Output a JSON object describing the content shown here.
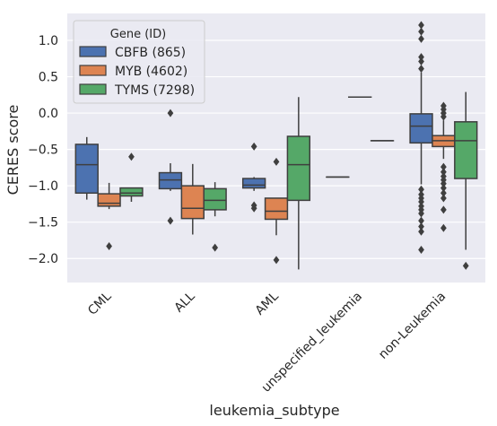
{
  "chart_data": {
    "type": "box",
    "xlabel": "leukemia_subtype",
    "ylabel": "CERES score",
    "ylim": [
      -2.33,
      1.37
    ],
    "yticks": [
      1.0,
      0.5,
      0.0,
      -0.5,
      -1.0,
      -1.5,
      -2.0
    ],
    "ytick_labels": [
      "1.0",
      "0.5",
      "0.0",
      "−0.5",
      "−1.0",
      "−1.5",
      "−2.0"
    ],
    "grid": true,
    "categories": [
      "CML",
      "ALL",
      "AML",
      "unspecified_leukemia",
      "non-Leukemia"
    ],
    "legend": {
      "title": "Gene (ID)",
      "placement": "top-left",
      "entries": [
        "CBFB (865)",
        "MYB (4602)",
        "TYMS (7298)"
      ]
    },
    "colors": {
      "background": "#eaeaf2",
      "grid": "#ffffff",
      "line": "#3f3f3f",
      "series": [
        "#4c72b0",
        "#dd8452",
        "#55a868"
      ]
    },
    "series": [
      {
        "name": "CBFB (865)",
        "boxes": [
          {
            "category": "CML",
            "whislo": -1.19,
            "q1": -1.1,
            "med": -0.71,
            "q3": -0.43,
            "whishi": -0.33,
            "fliers": []
          },
          {
            "category": "ALL",
            "whislo": -1.07,
            "q1": -1.04,
            "med": -0.92,
            "q3": -0.82,
            "whishi": -0.69,
            "fliers": [
              0.0,
              -1.48
            ]
          },
          {
            "category": "AML",
            "whislo": -1.07,
            "q1": -1.03,
            "med": -0.99,
            "q3": -0.9,
            "whishi": -0.88,
            "fliers": [
              -0.46,
              -1.27,
              -1.31
            ]
          },
          {
            "category": "unspecified_leukemia",
            "whislo": -0.88,
            "q1": -0.88,
            "med": -0.88,
            "q3": -0.88,
            "whishi": -0.88,
            "fliers": []
          },
          {
            "category": "non-Leukemia",
            "whislo": -0.98,
            "q1": -0.41,
            "med": -0.18,
            "q3": -0.01,
            "whishi": 0.56,
            "fliers": [
              0.61,
              0.71,
              0.77,
              1.02,
              1.12,
              1.21,
              -1.05,
              -1.12,
              -1.17,
              -1.22,
              -1.28,
              -1.33,
              -1.38,
              -1.48,
              -1.56,
              -1.63,
              -1.88
            ]
          }
        ]
      },
      {
        "name": "MYB (4602)",
        "boxes": [
          {
            "category": "CML",
            "whislo": -1.32,
            "q1": -1.28,
            "med": -1.24,
            "q3": -1.11,
            "whishi": -0.96,
            "fliers": [
              -1.83
            ]
          },
          {
            "category": "ALL",
            "whislo": -1.67,
            "q1": -1.45,
            "med": -1.31,
            "q3": -1.0,
            "whishi": -0.7,
            "fliers": []
          },
          {
            "category": "AML",
            "whislo": -1.68,
            "q1": -1.46,
            "med": -1.35,
            "q3": -1.17,
            "whishi": -1.17,
            "fliers": [
              -0.67,
              -2.02
            ]
          },
          {
            "category": "unspecified_leukemia",
            "whislo": 0.22,
            "q1": 0.22,
            "med": 0.22,
            "q3": 0.22,
            "whishi": 0.22,
            "fliers": []
          },
          {
            "category": "non-Leukemia",
            "whislo": -0.63,
            "q1": -0.46,
            "med": -0.38,
            "q3": -0.31,
            "whishi": -0.1,
            "fliers": [
              0.1,
              0.05,
              0.0,
              -0.05,
              -0.74,
              -0.81,
              -0.87,
              -0.92,
              -0.97,
              -1.03,
              -1.1,
              -1.17,
              -1.33,
              -1.58
            ]
          }
        ]
      },
      {
        "name": "TYMS (7298)",
        "boxes": [
          {
            "category": "CML",
            "whislo": -1.22,
            "q1": -1.14,
            "med": -1.1,
            "q3": -1.03,
            "whishi": -1.03,
            "fliers": [
              -0.6
            ]
          },
          {
            "category": "ALL",
            "whislo": -1.42,
            "q1": -1.33,
            "med": -1.2,
            "q3": -1.04,
            "whishi": -0.95,
            "fliers": [
              -1.85
            ]
          },
          {
            "category": "AML",
            "whislo": -2.15,
            "q1": -1.2,
            "med": -0.71,
            "q3": -0.32,
            "whishi": 0.22,
            "fliers": []
          },
          {
            "category": "unspecified_leukemia",
            "whislo": -0.38,
            "q1": -0.38,
            "med": -0.38,
            "q3": -0.38,
            "whishi": -0.38,
            "fliers": []
          },
          {
            "category": "non-Leukemia",
            "whislo": -1.88,
            "q1": -0.9,
            "med": -0.38,
            "q3": -0.12,
            "whishi": 0.29,
            "fliers": [
              -2.1
            ]
          }
        ]
      }
    ]
  }
}
